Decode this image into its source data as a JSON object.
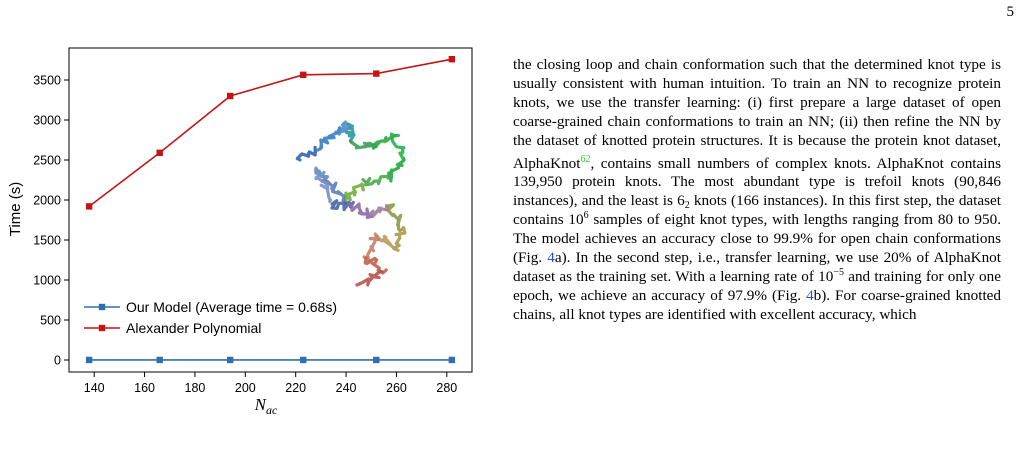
{
  "page_number": "5",
  "chart_data": {
    "type": "line",
    "x": [
      138,
      166,
      194,
      223,
      252,
      282
    ],
    "series": [
      {
        "name": "Our Model (Average time = 0.68s)",
        "values": [
          0.68,
          0.68,
          0.68,
          0.68,
          0.68,
          0.68
        ],
        "color": "#2f6fb0",
        "marker": "square"
      },
      {
        "name": "Alexander Polynomial",
        "values": [
          1920,
          2590,
          3300,
          3565,
          3580,
          3760
        ],
        "color": "#c41414",
        "marker": "square"
      }
    ],
    "xticks": [
      "140",
      "160",
      "180",
      "200",
      "220",
      "240",
      "260",
      "280"
    ],
    "yticks": [
      "0",
      "500",
      "1000",
      "1500",
      "2000",
      "2500",
      "3000",
      "3500"
    ],
    "xlabel": "N",
    "xlabel_sub": "ac",
    "ylabel": "Time (s)",
    "xlim": [
      130,
      290
    ],
    "ylim": [
      -150,
      3900
    ],
    "legend_position": "bottom-left",
    "grid": false,
    "inset": "protein knot structure rendering"
  },
  "text": {
    "p1": "the closing loop and chain conformation such that the determined knot type is usually consistent with human intuition. To train an NN to recognize protein knots, we use the transfer learning: (i) first prepare a large dataset of open coarse-grained chain conformations to train an NN; (ii) then refine the NN by the dataset of knotted protein structures. It is because the protein knot dataset, AlphaKnot",
    "cite1": "62",
    "p2": ", contains small numbers of complex knots. AlphaKnot contains 139,950 protein knots. The most abundant type is trefoil knots (90,846 instances), and the least is 6",
    "sub1": "2",
    "p3": " knots (166 instances). In this first step, the dataset contains 10",
    "sup1": "6",
    "p4": " samples of eight knot types, with lengths ranging from 80 to 950. The model achieves an accuracy close to 99.9% for open chain conformations (Fig. ",
    "ref1": "4",
    "p5": "a). In the second step, i.e., transfer learning, we use 20% of AlphaKnot dataset as the training set. With a learning rate of 10",
    "sup2": "−5",
    "p6": " and training for only one epoch, we achieve an accuracy of 97.9% (Fig. ",
    "ref2": "4",
    "p7": "b). For coarse-grained knotted chains, all knot types are identified with excellent accuracy, which"
  }
}
